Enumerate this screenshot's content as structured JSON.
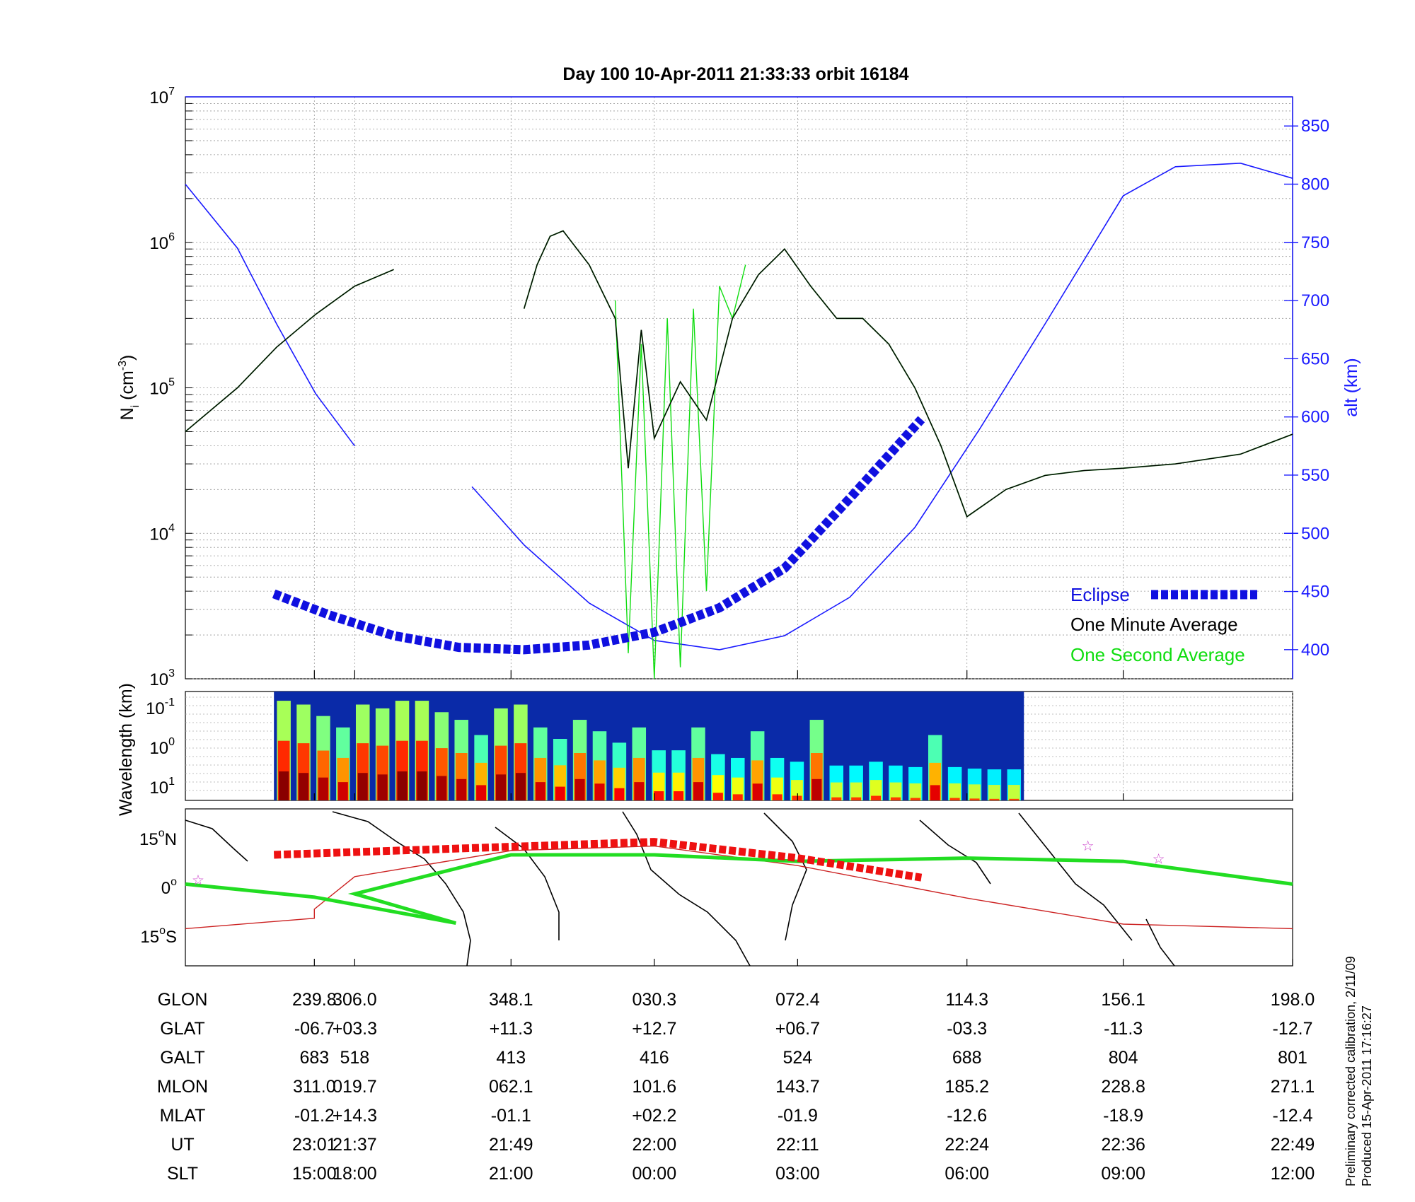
{
  "chart_data": [
    {
      "type": "line",
      "panel": "ion density",
      "title": "Day 100  10-Apr-2011 21:33:33   orbit 16184",
      "ylabel_left": "N_i (cm^-3)",
      "ylabel_left_base": "N",
      "ylabel_left_sub": "i",
      "ylabel_left_unit_open": " (cm",
      "ylabel_left_unit_exp": "-3",
      "ylabel_left_unit_close": ")",
      "ylabel_right": "alt (km)",
      "yscale_left": "log",
      "ylim_left": [
        1000,
        10000000
      ],
      "yticks_left": [
        {
          "base": "10",
          "exp": "3",
          "value": 1000
        },
        {
          "base": "10",
          "exp": "4",
          "value": 10000
        },
        {
          "base": "10",
          "exp": "5",
          "value": 100000
        },
        {
          "base": "10",
          "exp": "6",
          "value": 1000000
        },
        {
          "base": "10",
          "exp": "7",
          "value": 10000000
        }
      ],
      "ylim_right": [
        375,
        875
      ],
      "yticks_right": [
        "400",
        "450",
        "500",
        "550",
        "600",
        "650",
        "700",
        "750",
        "800",
        "850"
      ],
      "x_axis": "UT",
      "xlim_ut": [
        "21:24",
        "22:49"
      ],
      "grid": true,
      "legend_position": "bottom-right",
      "series": [
        {
          "name": "Eclipse",
          "color": "#1010e0",
          "style": "thick dashed, over altitude",
          "x": [
            "21:30.8",
            "21:35",
            "21:40",
            "21:45",
            "21:50",
            "21:55",
            "22:00",
            "22:05",
            "22:10",
            "22:15",
            "22:20.5"
          ],
          "y_alt_km": [
            448,
            430,
            412,
            402,
            400,
            404,
            415,
            436,
            470,
            530,
            598
          ]
        },
        {
          "name": "One Minute Average",
          "color": "#000000",
          "x": [
            "21:24",
            "21:28",
            "21:31",
            "21:34",
            "21:37",
            "21:40",
            "21:41.5",
            "21:43",
            "21:44",
            "21:45",
            "21:46",
            "21:47",
            "21:48",
            "21:49",
            "21:50",
            "21:51",
            "21:52",
            "21:53",
            "21:55",
            "21:57",
            "21:58",
            "21:59",
            "22:00",
            "22:02",
            "22:04",
            "22:06",
            "22:08",
            "22:10",
            "22:12",
            "22:14",
            "22:16",
            "22:18",
            "22:20",
            "22:22",
            "22:24",
            "22:27",
            "22:30",
            "22:33",
            "22:36",
            "22:40",
            "22:45",
            "22:49"
          ],
          "y": [
            50000,
            100000,
            190000,
            320000,
            500000,
            650000,
            null,
            null,
            null,
            null,
            null,
            null,
            null,
            null,
            350000,
            700000,
            1100000,
            1200000,
            700000,
            300000,
            28000,
            250000,
            45000,
            110000,
            60000,
            300000,
            600000,
            900000,
            500000,
            300000,
            300000,
            200000,
            100000,
            40000,
            13000,
            20000,
            25000,
            27000,
            28000,
            30000,
            35000,
            48000
          ]
        },
        {
          "name": "One Second Average",
          "color": "#10dd10",
          "description": "follows one-minute average with strong irregular spikes down to below 1e3 between 21:57 and 22:07",
          "x": [
            "21:57",
            "21:58",
            "21:59",
            "22:00",
            "22:01",
            "22:02",
            "22:03",
            "22:04",
            "22:05",
            "22:06",
            "22:07"
          ],
          "y": [
            400000,
            1500,
            200000,
            1000,
            300000,
            1200,
            350000,
            4000,
            500000,
            300000,
            700000
          ]
        },
        {
          "name": "altitude",
          "color": "#1a1aff",
          "x": [
            "21:24",
            "21:28",
            "21:31",
            "21:34",
            "21:37",
            "21:40",
            "21:43",
            "21:46",
            "21:50",
            "21:55",
            "22:00",
            "22:05",
            "22:10",
            "22:15",
            "22:20",
            "22:25",
            "22:30",
            "22:36",
            "22:40",
            "22:45",
            "22:49"
          ],
          "y_alt_km": [
            800,
            745,
            680,
            620,
            575,
            null,
            null,
            540,
            490,
            440,
            408,
            400,
            412,
            445,
            505,
            590,
            680,
            790,
            815,
            818,
            805
          ]
        }
      ]
    },
    {
      "type": "heatmap",
      "panel": "spectrogram",
      "ylabel": "Wavelength (km)",
      "yticks": [
        {
          "base": "10",
          "exp": "-1"
        },
        {
          "base": "10",
          "exp": "0"
        },
        {
          "base": "10",
          "exp": "1"
        }
      ],
      "data_span": "eclipse region only",
      "colormap": "jet",
      "columns": [
        {
          "intensity": 0.95
        },
        {
          "intensity": 0.9
        },
        {
          "intensity": 0.75
        },
        {
          "intensity": 0.6
        },
        {
          "intensity": 0.9
        },
        {
          "intensity": 0.85
        },
        {
          "intensity": 0.95
        },
        {
          "intensity": 0.95
        },
        {
          "intensity": 0.8
        },
        {
          "intensity": 0.7
        },
        {
          "intensity": 0.5
        },
        {
          "intensity": 0.85
        },
        {
          "intensity": 0.9
        },
        {
          "intensity": 0.6
        },
        {
          "intensity": 0.45
        },
        {
          "intensity": 0.7
        },
        {
          "intensity": 0.55
        },
        {
          "intensity": 0.4
        },
        {
          "intensity": 0.6
        },
        {
          "intensity": 0.3
        },
        {
          "intensity": 0.3
        },
        {
          "intensity": 0.6
        },
        {
          "intensity": 0.25
        },
        {
          "intensity": 0.2
        },
        {
          "intensity": 0.55
        },
        {
          "intensity": 0.2
        },
        {
          "intensity": 0.15
        },
        {
          "intensity": 0.7
        },
        {
          "intensity": 0.1
        },
        {
          "intensity": 0.1
        },
        {
          "intensity": 0.15
        },
        {
          "intensity": 0.1
        },
        {
          "intensity": 0.08
        },
        {
          "intensity": 0.5
        },
        {
          "intensity": 0.08
        },
        {
          "intensity": 0.06
        },
        {
          "intensity": 0.05
        },
        {
          "intensity": 0.05
        }
      ]
    },
    {
      "type": "map",
      "panel": "ground track",
      "yticks": [
        {
          "label": "15",
          "suffix": "N",
          "lat": 15
        },
        {
          "label": "0",
          "suffix": "",
          "lat": 0
        },
        {
          "label": "15",
          "suffix": "S",
          "lat": -15
        }
      ],
      "track_glon": [
        "239.8",
        "306.0",
        "348.1",
        "030.3",
        "072.4",
        "114.3",
        "156.1",
        "198.0"
      ],
      "track_glat": [
        "-06.7",
        "+03.3",
        "+11.3",
        "+12.7",
        "+06.7",
        "-03.3",
        "-11.3",
        "-12.7"
      ],
      "magnetic_equator_color": "#22dd22",
      "eclipse_track_color": "#ee1111",
      "orbit_track_color": "#cc2222",
      "star_marker_color": "#cc44cc"
    }
  ],
  "table": {
    "columns": [
      "",
      "",
      "",
      "",
      "",
      "",
      "",
      ""
    ],
    "rows": [
      {
        "label": "GLON",
        "values": [
          "239.8",
          "306.0",
          "348.1",
          "030.3",
          "072.4",
          "114.3",
          "156.1",
          "198.0"
        ]
      },
      {
        "label": "GLAT",
        "values": [
          "-06.7",
          "+03.3",
          "+11.3",
          "+12.7",
          "+06.7",
          "-03.3",
          "-11.3",
          "-12.7"
        ]
      },
      {
        "label": "GALT",
        "values": [
          "683",
          "518",
          "413",
          "416",
          "524",
          "688",
          "804",
          "801"
        ]
      },
      {
        "label": "MLON",
        "values": [
          "311.0",
          "019.7",
          "062.1",
          "101.6",
          "143.7",
          "185.2",
          "228.8",
          "271.1"
        ]
      },
      {
        "label": "MLAT",
        "values": [
          "-01.2",
          "+14.3",
          "-01.1",
          "+02.2",
          "-01.9",
          "-12.6",
          "-18.9",
          "-12.4"
        ]
      },
      {
        "label": "UT",
        "values": [
          "23:01",
          "21:37",
          "21:49",
          "22:00",
          "22:11",
          "22:24",
          "22:36",
          "22:49"
        ]
      },
      {
        "label": "SLT",
        "values": [
          "15:00",
          "18:00",
          "21:00",
          "00:00",
          "03:00",
          "06:00",
          "09:00",
          "12:00"
        ]
      }
    ]
  },
  "notes": [
    "Preliminary corrected calibration, 2/11/09",
    "Produced 15-Apr-2011 17:16:27"
  ],
  "colors": {
    "axis_right": "#1a1aff",
    "eclipse": "#1010e0",
    "minute_avg": "#000000",
    "second_avg": "#10dd10",
    "star": "#cc44cc"
  }
}
